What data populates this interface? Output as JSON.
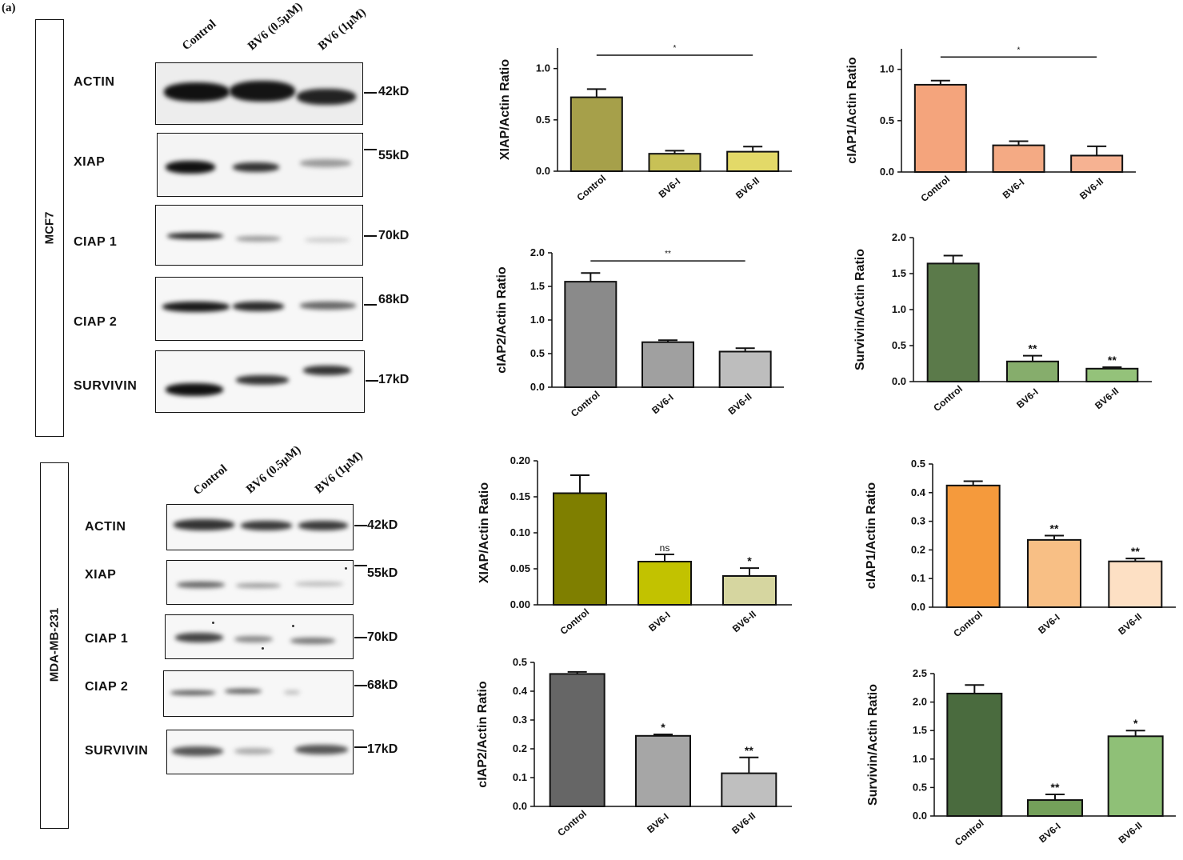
{
  "panel_label": "(a)",
  "blot_headers": [
    "Control",
    "BV6 (0.5μM)",
    "BV6 (1μM)"
  ],
  "mcf7": {
    "cell_line": "MCF7",
    "rows": [
      {
        "protein": "ACTIN",
        "kd": "42kD"
      },
      {
        "protein": "XIAP",
        "kd": "55kD"
      },
      {
        "protein": "CIAP 1",
        "kd": "70kD"
      },
      {
        "protein": "CIAP 2",
        "kd": "68kD"
      },
      {
        "protein": "SURVIVIN",
        "kd": "17kD"
      }
    ]
  },
  "mda": {
    "cell_line": "MDA-MB-231",
    "rows": [
      {
        "protein": "ACTIN",
        "kd": "42kD"
      },
      {
        "protein": "XIAP",
        "kd": "55kD"
      },
      {
        "protein": "CIAP 1",
        "kd": "70kD"
      },
      {
        "protein": "CIAP 2",
        "kd": "68kD"
      },
      {
        "protein": "SURVIVIN",
        "kd": "17kD"
      }
    ]
  },
  "chart_data": [
    {
      "id": "c1",
      "type": "bar",
      "ylabel": "XIAP/Actin Ratio",
      "categories": [
        "Control",
        "BV6-I",
        "BV6-II"
      ],
      "values": [
        0.72,
        0.17,
        0.19
      ],
      "errors": [
        0.08,
        0.03,
        0.05
      ],
      "ylim": [
        0,
        1.2
      ],
      "yticks": [
        0.0,
        0.5,
        1.0
      ],
      "tick_decimals": 1,
      "colors": [
        "#a6a04a",
        "#c8c156",
        "#e3d968"
      ],
      "bar_labels": [
        "",
        "",
        ""
      ],
      "bracket": {
        "from": 0,
        "to": 2,
        "y": 1.13,
        "label": "*"
      }
    },
    {
      "id": "c2",
      "type": "bar",
      "ylabel": "cIAP1/Actin Ratio",
      "categories": [
        "Control",
        "BV6-I",
        "BV6-II"
      ],
      "values": [
        0.85,
        0.26,
        0.16
      ],
      "errors": [
        0.04,
        0.04,
        0.09
      ],
      "ylim": [
        0,
        1.2
      ],
      "yticks": [
        0.0,
        0.5,
        1.0
      ],
      "tick_decimals": 1,
      "colors": [
        "#f4a47c",
        "#f4aa84",
        "#f6b292"
      ],
      "bar_labels": [
        "",
        "",
        ""
      ],
      "bracket": {
        "from": 0,
        "to": 2,
        "y": 1.12,
        "label": "*"
      }
    },
    {
      "id": "c3",
      "type": "bar",
      "ylabel": "cIAP2/Actin Ratio",
      "categories": [
        "Control",
        "BV6-I",
        "BV6-II"
      ],
      "values": [
        1.57,
        0.67,
        0.53
      ],
      "errors": [
        0.13,
        0.03,
        0.05
      ],
      "ylim": [
        0,
        2.0
      ],
      "yticks": [
        0.0,
        0.5,
        1.0,
        1.5,
        2.0
      ],
      "tick_decimals": 1,
      "colors": [
        "#8a8a8a",
        "#a0a0a0",
        "#bdbdbd"
      ],
      "bar_labels": [
        "",
        "",
        ""
      ],
      "bracket": {
        "from": 0,
        "to": 2,
        "y": 1.88,
        "label": "**"
      }
    },
    {
      "id": "c4",
      "type": "bar",
      "ylabel": "Survivin/Actin Ratio",
      "categories": [
        "Control",
        "BV6-I",
        "BV6-II"
      ],
      "values": [
        1.64,
        0.28,
        0.18
      ],
      "errors": [
        0.11,
        0.08,
        0.02
      ],
      "ylim": [
        0,
        2.0
      ],
      "yticks": [
        0.0,
        0.5,
        1.0,
        1.5,
        2.0
      ],
      "tick_decimals": 1,
      "colors": [
        "#5b7a4a",
        "#86ad6c",
        "#94c27a"
      ],
      "bar_labels": [
        "",
        "**",
        "**"
      ],
      "bracket": null
    },
    {
      "id": "c5",
      "type": "bar",
      "ylabel": "XIAP/Actin Ratio",
      "categories": [
        "Control",
        "BV6-I",
        "BV6-II"
      ],
      "values": [
        0.155,
        0.06,
        0.04
      ],
      "errors": [
        0.025,
        0.01,
        0.011
      ],
      "ylim": [
        0,
        0.2
      ],
      "yticks": [
        0.0,
        0.05,
        0.1,
        0.15,
        0.2
      ],
      "tick_decimals": 2,
      "colors": [
        "#7f7f00",
        "#c2c200",
        "#d6d6a0"
      ],
      "bar_labels": [
        "",
        "ns",
        "*"
      ],
      "bracket": null
    },
    {
      "id": "c6",
      "type": "bar",
      "ylabel": "cIAP1/Actin Ratio",
      "categories": [
        "Control",
        "BV6-I",
        "BV6-II"
      ],
      "values": [
        0.425,
        0.235,
        0.16
      ],
      "errors": [
        0.015,
        0.015,
        0.01
      ],
      "ylim": [
        0,
        0.5
      ],
      "yticks": [
        0.0,
        0.1,
        0.2,
        0.3,
        0.4,
        0.5
      ],
      "tick_decimals": 1,
      "colors": [
        "#f59a3c",
        "#f8bf85",
        "#fde0c4"
      ],
      "bar_labels": [
        "",
        "**",
        "**"
      ],
      "bracket": null
    },
    {
      "id": "c7",
      "type": "bar",
      "ylabel": "cIAP2/Actin Ratio",
      "categories": [
        "Control",
        "BV6-I",
        "BV6-II"
      ],
      "values": [
        0.46,
        0.245,
        0.115
      ],
      "errors": [
        0.007,
        0.005,
        0.055
      ],
      "ylim": [
        0,
        0.5
      ],
      "yticks": [
        0.0,
        0.1,
        0.2,
        0.3,
        0.4,
        0.5
      ],
      "tick_decimals": 1,
      "colors": [
        "#666666",
        "#a6a6a6",
        "#bfbfbf"
      ],
      "bar_labels": [
        "",
        "*",
        "**"
      ],
      "bracket": null
    },
    {
      "id": "c8",
      "type": "bar",
      "ylabel": "Survivin/Actin Ratio",
      "categories": [
        "Control",
        "BV6-I",
        "BV6-II"
      ],
      "values": [
        2.15,
        0.28,
        1.4
      ],
      "errors": [
        0.15,
        0.1,
        0.1
      ],
      "ylim": [
        0,
        2.5
      ],
      "yticks": [
        0.0,
        0.5,
        1.0,
        1.5,
        2.0,
        2.5
      ],
      "tick_decimals": 1,
      "colors": [
        "#4a6b3e",
        "#74a05a",
        "#8fc077"
      ],
      "bar_labels": [
        "",
        "**",
        "*"
      ],
      "bracket": null
    }
  ]
}
